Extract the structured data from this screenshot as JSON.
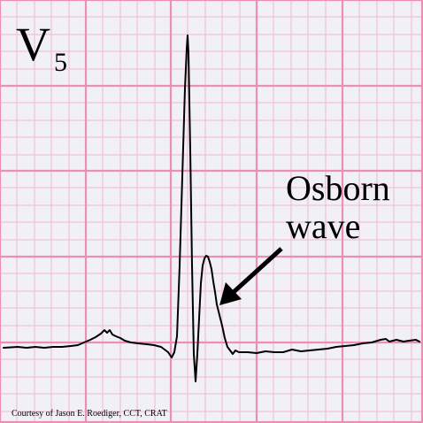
{
  "lead": {
    "letter": "V",
    "number": "5"
  },
  "annotation": {
    "line1": "Osborn",
    "line2": "wave"
  },
  "credit": "Courtesy of Jason E. Roediger, CCT, CRAT",
  "colors": {
    "background": "#f1f0f6",
    "grid_minor": "#f1b9cf",
    "grid_major": "#eb8fb5",
    "trace": "#000000",
    "text": "#000000"
  }
}
